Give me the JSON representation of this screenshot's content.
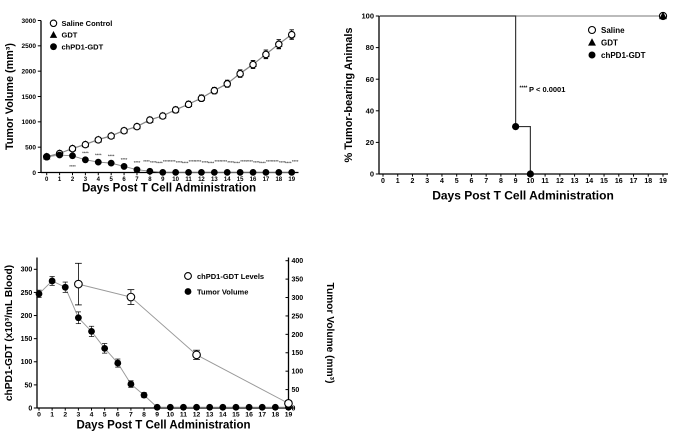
{
  "figure": {
    "background": "#ffffff",
    "text_color": "#000000",
    "series_line_color": "#888888"
  },
  "chart_data": [
    {
      "id": "tumor-growth",
      "type": "line",
      "title": "",
      "xlabel": "Days Post T Cell Administration",
      "ylabel": "Tumor Volume (mm³)",
      "x": [
        0,
        1,
        2,
        3,
        4,
        5,
        6,
        7,
        8,
        9,
        10,
        11,
        12,
        13,
        14,
        15,
        16,
        17,
        18,
        19
      ],
      "xlim": [
        0,
        19
      ],
      "ylim": [
        0,
        3000
      ],
      "yticks": [
        0,
        500,
        1000,
        1500,
        2000,
        2500,
        3000
      ],
      "grid": false,
      "legend_position": "top-left-inside",
      "series": [
        {
          "name": "Saline Control",
          "marker": "open-circle",
          "z": 2,
          "values": [
            310,
            375,
            470,
            550,
            645,
            720,
            825,
            905,
            1035,
            1115,
            1235,
            1345,
            1465,
            1615,
            1750,
            1950,
            2130,
            2330,
            2530,
            2720
          ],
          "errors": [
            35,
            35,
            40,
            40,
            45,
            45,
            50,
            50,
            55,
            55,
            60,
            60,
            65,
            65,
            70,
            75,
            80,
            85,
            90,
            95
          ]
        },
        {
          "name": "GDT",
          "marker": "filled-triangle",
          "z": 1,
          "values": [
            315,
            380,
            478,
            558,
            652,
            728,
            832,
            912,
            1042,
            1122,
            1242,
            1352,
            1472,
            1622,
            1758,
            1958,
            2138,
            2338,
            2538,
            2728
          ],
          "errors": [
            30,
            30,
            35,
            35,
            40,
            40,
            45,
            45,
            50,
            50,
            55,
            55,
            60,
            60,
            65,
            70,
            75,
            80,
            85,
            90
          ]
        },
        {
          "name": "chPD1-GDT",
          "marker": "filled-circle",
          "z": 3,
          "values": [
            310,
            345,
            330,
            250,
            205,
            185,
            120,
            55,
            25,
            3,
            3,
            3,
            3,
            3,
            3,
            3,
            3,
            3,
            3,
            3
          ],
          "errors": [
            25,
            28,
            30,
            26,
            22,
            20,
            16,
            12,
            8,
            0,
            0,
            0,
            0,
            0,
            0,
            0,
            0,
            0,
            0,
            0
          ]
        }
      ],
      "significance": {
        "symbol": "****",
        "below_day": 2,
        "curve_days": [
          3,
          4,
          5,
          6,
          7
        ],
        "band_days": [
          8,
          9,
          10,
          11,
          12,
          13,
          14,
          15,
          16,
          17,
          18,
          19
        ]
      }
    },
    {
      "id": "tumor-bearing",
      "type": "step",
      "title": "",
      "xlabel": "Days Post T Cell Administration",
      "ylabel": "% Tumor-bearing Animals",
      "x_ticks": [
        0,
        1,
        2,
        3,
        4,
        5,
        6,
        7,
        8,
        9,
        10,
        11,
        12,
        13,
        14,
        15,
        16,
        17,
        18,
        19
      ],
      "ylim": [
        0,
        100
      ],
      "yticks": [
        0,
        20,
        40,
        60,
        80,
        100
      ],
      "grid": false,
      "legend_position": "top-right-inside",
      "series": [
        {
          "name": "Saline",
          "marker": "open-circle",
          "line": [
            [
              0,
              100
            ],
            [
              19,
              100
            ]
          ],
          "points": [
            [
              19,
              100
            ]
          ]
        },
        {
          "name": "GDT",
          "marker": "filled-triangle",
          "line": [
            [
              0,
              100
            ],
            [
              19,
              100
            ]
          ],
          "points": [
            [
              19,
              100
            ]
          ]
        },
        {
          "name": "chPD1-GDT",
          "marker": "filled-circle",
          "line": [
            [
              0,
              100
            ],
            [
              9,
              100
            ],
            [
              9,
              30
            ],
            [
              10,
              30
            ],
            [
              10,
              0
            ]
          ],
          "points": [
            [
              9,
              30
            ],
            [
              10,
              0
            ]
          ]
        }
      ],
      "annotation": {
        "superscript": "****",
        "text": "P < 0.0001",
        "x_day": 9.3,
        "y_value": 52
      }
    },
    {
      "id": "levels-vs-volume",
      "type": "line-dual-axis",
      "title": "",
      "xlabel": "Days Post T Cell Administration",
      "ylabel_left": "chPD1-GDT (x10³/mL Blood)",
      "ylabel_right": "Tumor Volume (mm³)",
      "x_ticks": [
        0,
        1,
        2,
        3,
        4,
        5,
        6,
        7,
        8,
        9,
        10,
        11,
        12,
        13,
        14,
        15,
        16,
        17,
        18,
        19
      ],
      "ylim_left": [
        0,
        325
      ],
      "ylim_right": [
        0,
        400
      ],
      "yticks_left": [
        0,
        50,
        100,
        150,
        200,
        250,
        300
      ],
      "yticks_right": [
        0,
        50,
        100,
        150,
        200,
        250,
        300,
        350,
        400
      ],
      "grid": false,
      "legend_position": "top-center-inside",
      "series": [
        {
          "name": "chPD1-GDT Levels",
          "marker": "open-circle",
          "axis": "left",
          "x": [
            3,
            7,
            12,
            19
          ],
          "values": [
            268,
            240,
            115,
            10
          ],
          "errors": [
            45,
            16,
            10,
            5
          ]
        },
        {
          "name": "Tumor Volume",
          "marker": "filled-circle",
          "axis": "right",
          "x": [
            0,
            1,
            2,
            3,
            4,
            5,
            6,
            7,
            8,
            9,
            10,
            11,
            12,
            13,
            14,
            15,
            16,
            17,
            18,
            19
          ],
          "values": [
            310,
            345,
            328,
            245,
            208,
            162,
            122,
            65,
            35,
            2,
            2,
            2,
            2,
            2,
            2,
            2,
            2,
            2,
            2,
            2
          ],
          "errors": [
            10,
            12,
            14,
            16,
            14,
            13,
            11,
            9,
            7,
            0,
            0,
            0,
            0,
            0,
            0,
            0,
            0,
            0,
            0,
            0
          ]
        }
      ]
    }
  ]
}
